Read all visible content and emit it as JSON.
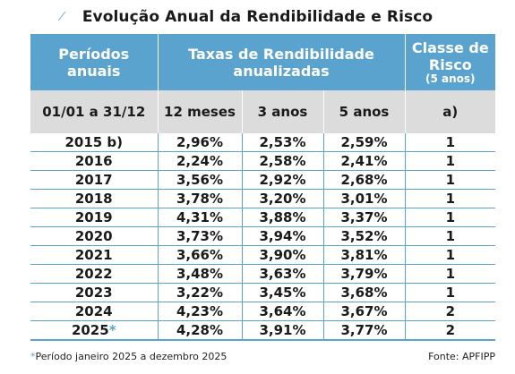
{
  "title": "Evolução Anual da Rendibilidade e Risco",
  "header": {
    "periods": "Períodos anuais",
    "rates": "Taxas de Rendibilidade anualizadas",
    "risk_class": "Classe de Risco",
    "risk_class_sub": "(5 anos)"
  },
  "subheader": {
    "period_range": "01/01 a 31/12",
    "m12": "12 meses",
    "y3": "3 anos",
    "y5": "5 anos",
    "risk_note": "a)"
  },
  "rows": [
    {
      "year": "2015 b)",
      "m12": "2,96%",
      "y3": "2,53%",
      "y5": "2,59%",
      "risk": "1"
    },
    {
      "year": "2016",
      "m12": "2,24%",
      "y3": "2,58%",
      "y5": "2,41%",
      "risk": "1"
    },
    {
      "year": "2017",
      "m12": "3,56%",
      "y3": "2,92%",
      "y5": "2,68%",
      "risk": "1"
    },
    {
      "year": "2018",
      "m12": "3,78%",
      "y3": "3,20%",
      "y5": "3,01%",
      "risk": "1"
    },
    {
      "year": "2019",
      "m12": "4,31%",
      "y3": "3,88%",
      "y5": "3,37%",
      "risk": "1"
    },
    {
      "year": "2020",
      "m12": "3,73%",
      "y3": "3,94%",
      "y5": "3,52%",
      "risk": "1"
    },
    {
      "year": "2021",
      "m12": "3,66%",
      "y3": "3,90%",
      "y5": "3,81%",
      "risk": "1"
    },
    {
      "year": "2022",
      "m12": "3,48%",
      "y3": "3,63%",
      "y5": "3,79%",
      "risk": "1"
    },
    {
      "year": "2023",
      "m12": "3,22%",
      "y3": "3,45%",
      "y5": "3,68%",
      "risk": "1"
    },
    {
      "year": "2024",
      "m12": "4,23%",
      "y3": "3,64%",
      "y5": "3,67%",
      "risk": "2"
    },
    {
      "year": "2025",
      "m12": "4,28%",
      "y3": "3,91%",
      "y5": "3,77%",
      "risk": "2"
    }
  ],
  "last_row_marker": "*",
  "footnote": {
    "marker": "*",
    "text": "Período janeiro 2025 a dezembro 2025"
  },
  "source": "Fonte: APFIPP",
  "colors": {
    "header_bg": "#5ba3cf",
    "subheader_bg": "#dcdcdc",
    "line": "#5ba3cf"
  }
}
